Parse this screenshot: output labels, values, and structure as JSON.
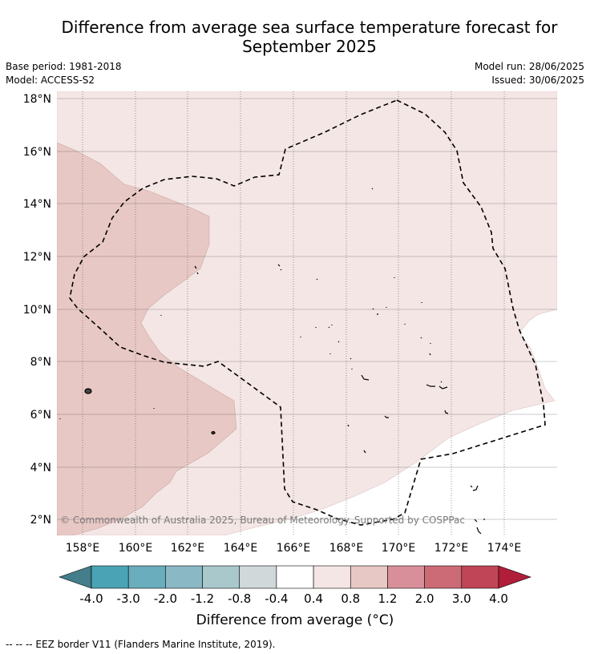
{
  "title_line1": "Difference from average sea surface temperature forecast for",
  "title_line2": "September 2025",
  "base_period": "Base period: 1981-2018",
  "model": "Model: ACCESS-S2",
  "model_run": "Model run: 28/06/2025",
  "issued": "Issued: 30/06/2025",
  "map": {
    "lat_labels": [
      "18°N",
      "16°N",
      "14°N",
      "12°N",
      "10°N",
      "8°N",
      "6°N",
      "4°N",
      "2°N"
    ],
    "lon_labels": [
      "158°E",
      "160°E",
      "162°E",
      "164°E",
      "166°E",
      "168°E",
      "170°E",
      "172°E",
      "174°E"
    ],
    "copyright": "© Commonwealth of Australia 2025, Bureau of Meteorology. Supported by COSPPac",
    "colors": {
      "background": "#ffffff",
      "anomaly_0_4_to_0_8": "#f4e6e5",
      "anomaly_0_8_to_1_2": "#e8c8c4",
      "eez_line": "#000000",
      "land": "#000000"
    }
  },
  "colorbar": {
    "tick_labels": [
      "-4.0",
      "-3.0",
      "-2.0",
      "-1.2",
      "-0.8",
      "-0.4",
      "0.4",
      "0.8",
      "1.2",
      "2.0",
      "3.0",
      "4.0"
    ],
    "colors": [
      "#437e8a",
      "#4aa3b5",
      "#6aadbd",
      "#8ab8c4",
      "#a8c8cc",
      "#d0d8da",
      "#ffffff",
      "#f4e6e5",
      "#e8c8c4",
      "#d88f99",
      "#cc6a76",
      "#c04556",
      "#b01e3a"
    ],
    "title": "Difference from average (",
    "title_unit": "°C)"
  },
  "footnote": "--  --  -- EEZ border V11 (Flanders Marine Institute, 2019)."
}
